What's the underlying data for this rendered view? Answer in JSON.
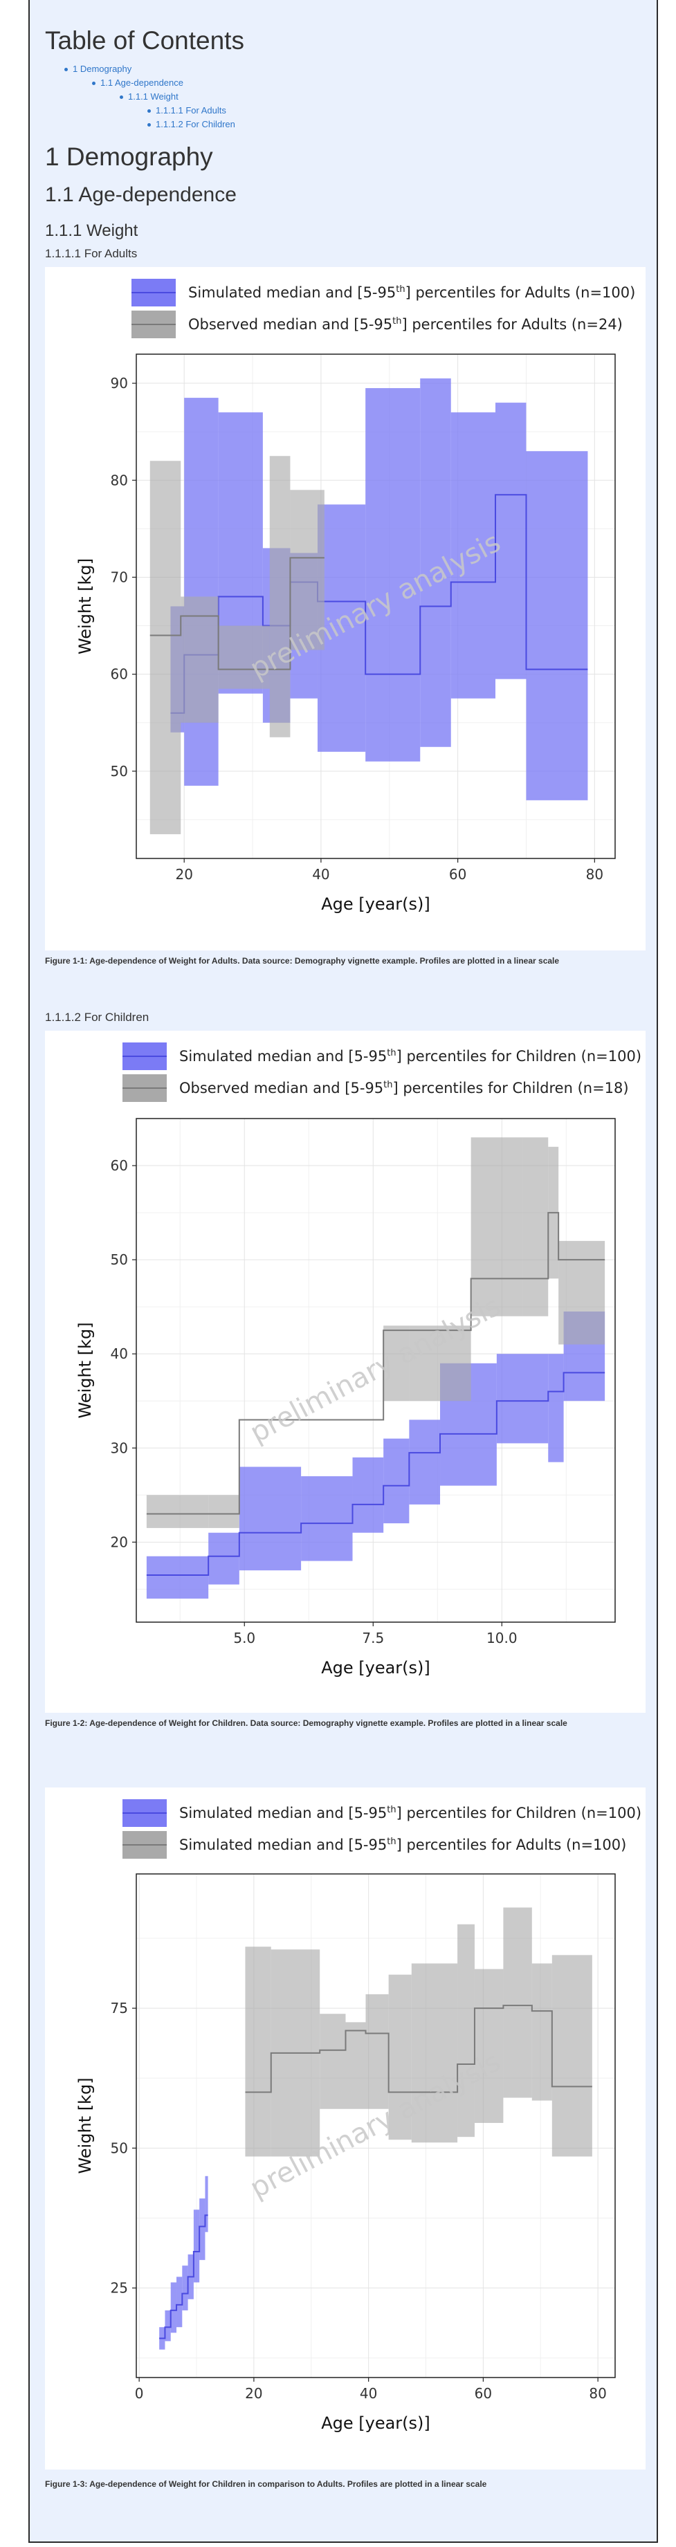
{
  "toc": {
    "title": "Table of Contents",
    "items": [
      {
        "label": "1 Demography",
        "level": 1
      },
      {
        "label": "1.1 Age-dependence",
        "level": 2
      },
      {
        "label": "1.1.1 Weight",
        "level": 3
      },
      {
        "label": "1.1.1.1 For Adults",
        "level": 4
      },
      {
        "label": "1.1.1.2 For Children",
        "level": 4
      }
    ]
  },
  "headings": {
    "demography": "1 Demography",
    "age_dependence": "1.1 Age-dependence",
    "weight": "1.1.1 Weight",
    "adults": "1.1.1.1 For Adults",
    "children": "1.1.1.2 For Children"
  },
  "watermark": "preliminary analysis",
  "colors": {
    "simulated": "#7b7bf5",
    "simulated_line": "#4a4ae0",
    "observed": "#a9a9a9",
    "observed_line": "#7a7a7a"
  },
  "captions": [
    "Figure 1-1: Age-dependence of Weight for Adults. Data source: Demography vignette example. Profiles are plotted in a linear scale",
    "Figure 1-2: Age-dependence of Weight for Children. Data source: Demography vignette example. Profiles are plotted in a linear scale",
    "Figure 1-3: Age-dependence of Weight for Children in comparison to Adults. Profiles are plotted in a linear scale"
  ],
  "chart_data": [
    {
      "type": "area",
      "xlabel": "Age [year(s)]",
      "ylabel": "Weight [kg]",
      "xlim": [
        13,
        83
      ],
      "ylim": [
        41,
        93
      ],
      "xticks": [
        20,
        40,
        60,
        80
      ],
      "yticks": [
        50,
        60,
        70,
        80,
        90
      ],
      "xtick_labels": [
        "20",
        "40",
        "60",
        "80"
      ],
      "ytick_labels": [
        "50",
        "60",
        "70",
        "80",
        "90"
      ],
      "legend": [
        {
          "kind": "sim",
          "prefix": "Simulated median and [5-95",
          "sup": "th",
          "suffix": "] percentiles for Adults (n=100)"
        },
        {
          "kind": "obs",
          "prefix": "Observed median and [5-95",
          "sup": "th",
          "suffix": "] percentiles for Adults (n=24)"
        }
      ],
      "series": [
        {
          "kind": "sim",
          "bins": [
            [
              18,
              56,
              54,
              67
            ],
            [
              20,
              62,
              48.5,
              88.5
            ],
            [
              25,
              68,
              58,
              87
            ],
            [
              31.5,
              65,
              55,
              73
            ],
            [
              35.5,
              69.5,
              57.5,
              72.5
            ],
            [
              39.5,
              67.5,
              52,
              77.5
            ],
            [
              46.5,
              60,
              51,
              89.5
            ],
            [
              54.5,
              67,
              52.5,
              90.5
            ],
            [
              59,
              69.5,
              57.5,
              87
            ],
            [
              65.5,
              78.5,
              59.5,
              88
            ],
            [
              70,
              60.5,
              47,
              83
            ],
            [
              79,
              60.5,
              47,
              83
            ]
          ]
        },
        {
          "kind": "obs",
          "bins": [
            [
              15,
              64,
              43.5,
              82
            ],
            [
              19.5,
              66,
              55,
              68
            ],
            [
              25,
              60.5,
              58.5,
              65
            ],
            [
              32.5,
              60.5,
              53.5,
              82.5
            ],
            [
              35.5,
              72,
              62.5,
              79
            ],
            [
              40.5,
              72,
              62.5,
              79
            ]
          ]
        }
      ]
    },
    {
      "type": "area",
      "xlabel": "Age [year(s)]",
      "ylabel": "Weight [kg]",
      "xlim": [
        2.9,
        12.2
      ],
      "ylim": [
        11.5,
        65
      ],
      "xticks": [
        5.0,
        7.5,
        10.0
      ],
      "yticks": [
        20,
        30,
        40,
        50,
        60
      ],
      "xtick_labels": [
        "5.0",
        "7.5",
        "10.0"
      ],
      "ytick_labels": [
        "20",
        "30",
        "40",
        "50",
        "60"
      ],
      "legend": [
        {
          "kind": "sim",
          "prefix": "Simulated median and [5-95",
          "sup": "th",
          "suffix": "] percentiles for Children (n=100)"
        },
        {
          "kind": "obs",
          "prefix": "Observed median and [5-95",
          "sup": "th",
          "suffix": "] percentiles for Children (n=18)"
        }
      ],
      "series": [
        {
          "kind": "sim",
          "bins": [
            [
              3.1,
              16.5,
              14,
              18.5
            ],
            [
              4.3,
              18.5,
              15.5,
              21
            ],
            [
              4.9,
              21,
              17,
              28
            ],
            [
              6.1,
              22,
              18,
              27
            ],
            [
              7.1,
              24,
              21,
              29
            ],
            [
              7.7,
              26,
              22,
              31
            ],
            [
              8.2,
              29.5,
              24,
              33
            ],
            [
              8.8,
              31.5,
              26,
              39
            ],
            [
              9.9,
              35,
              30.5,
              40
            ],
            [
              10.9,
              36,
              28.5,
              40
            ],
            [
              11.2,
              38,
              35,
              44.5
            ],
            [
              12.0,
              38,
              35,
              44.5
            ]
          ]
        },
        {
          "kind": "obs",
          "bins": [
            [
              3.1,
              23,
              21.5,
              25
            ],
            [
              4.3,
              23,
              21.5,
              25
            ],
            [
              4.9,
              33,
              33,
              33
            ],
            [
              6.1,
              33,
              33,
              33
            ],
            [
              7.7,
              42.5,
              35,
              43
            ],
            [
              8.2,
              42.5,
              35,
              43
            ],
            [
              9.4,
              48,
              44,
              63
            ],
            [
              10.4,
              48,
              44,
              63
            ],
            [
              10.9,
              55,
              48,
              62
            ],
            [
              11.1,
              50,
              41,
              52
            ],
            [
              12.0,
              50,
              41,
              52
            ]
          ]
        }
      ]
    },
    {
      "type": "area",
      "xlabel": "Age [year(s)]",
      "ylabel": "Weight [kg]",
      "xlim": [
        -0.5,
        83
      ],
      "ylim": [
        9,
        99
      ],
      "xticks": [
        0,
        20,
        40,
        60,
        80
      ],
      "yticks": [
        25,
        50,
        75
      ],
      "xtick_labels": [
        "0",
        "20",
        "40",
        "60",
        "80"
      ],
      "ytick_labels": [
        "25",
        "50",
        "75"
      ],
      "legend": [
        {
          "kind": "sim",
          "prefix": "Simulated median and [5-95",
          "sup": "th",
          "suffix": "] percentiles for Children (n=100)"
        },
        {
          "kind": "obs",
          "prefix": "Simulated median and [5-95",
          "sup": "th",
          "suffix": "] percentiles for Adults (n=100)"
        }
      ],
      "series": [
        {
          "kind": "sim",
          "bins": [
            [
              3.5,
              16,
              14,
              18
            ],
            [
              4.5,
              18,
              15.5,
              21
            ],
            [
              5.5,
              21,
              17,
              26
            ],
            [
              6.5,
              22,
              18,
              27
            ],
            [
              7.5,
              24,
              21,
              29
            ],
            [
              8.5,
              27,
              23,
              31
            ],
            [
              9.5,
              31.5,
              26,
              39
            ],
            [
              10.5,
              36,
              30,
              41
            ],
            [
              11.5,
              38,
              35,
              45
            ],
            [
              12.0,
              38,
              35,
              45
            ]
          ]
        },
        {
          "kind": "obs",
          "bins": [
            [
              18.5,
              60,
              48.5,
              86
            ],
            [
              23,
              67,
              48.5,
              85.5
            ],
            [
              31.5,
              67.5,
              57,
              74
            ],
            [
              36,
              71,
              57,
              72.5
            ],
            [
              39.5,
              70.5,
              57,
              77.5
            ],
            [
              43.5,
              60,
              51.5,
              81
            ],
            [
              47.5,
              60,
              51,
              83
            ],
            [
              55.5,
              65,
              52,
              90
            ],
            [
              58.5,
              75,
              54.5,
              82
            ],
            [
              63.5,
              75.5,
              59,
              93
            ],
            [
              68.5,
              74.5,
              58.5,
              83
            ],
            [
              72,
              61,
              48.5,
              84.5
            ],
            [
              79,
              61,
              48.5,
              84.5
            ]
          ]
        }
      ]
    }
  ]
}
